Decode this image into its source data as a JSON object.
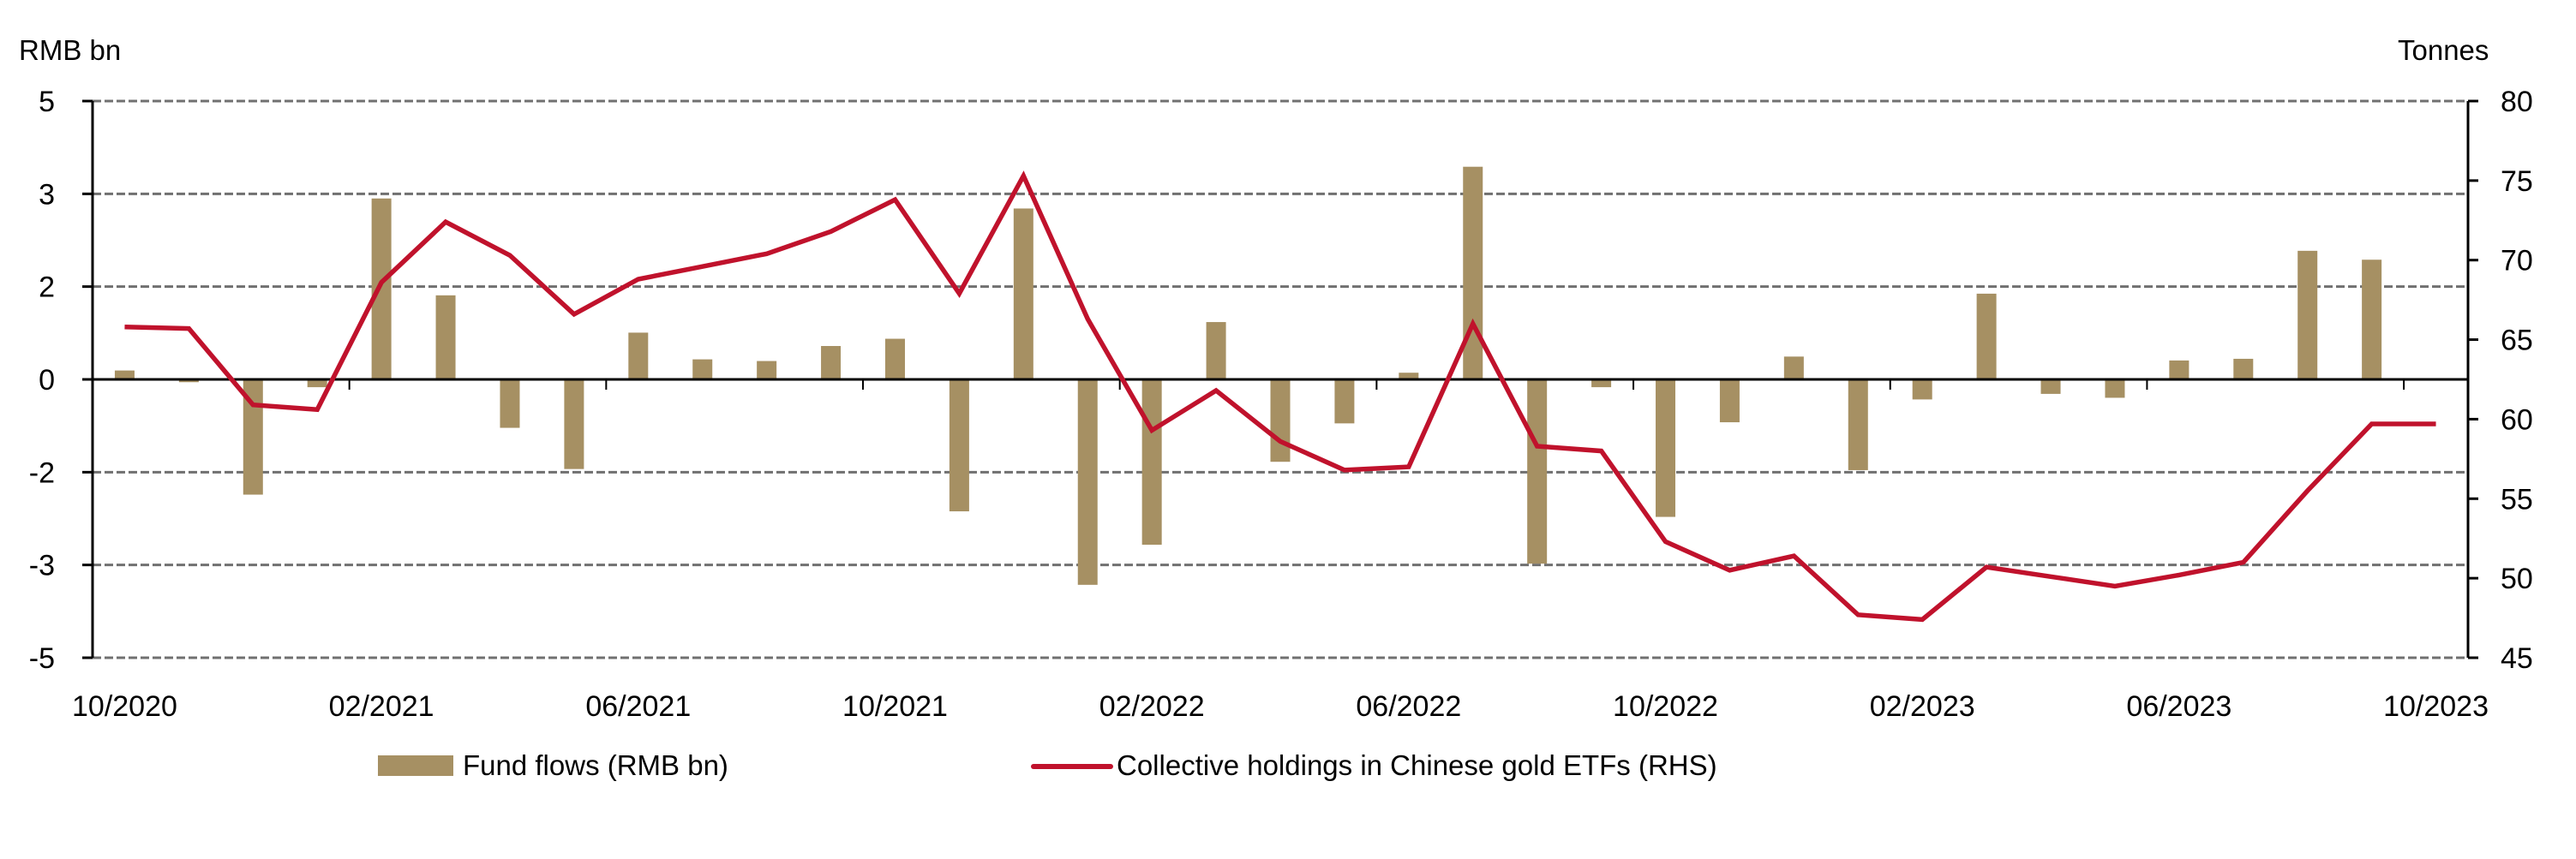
{
  "chart_data": {
    "type": "bar+line",
    "left_axis": {
      "label": "RMB bn",
      "ylim": [
        -5,
        5
      ],
      "tick_labels": [
        "5",
        "3",
        "2",
        "0",
        "-2",
        "-3",
        "-5"
      ],
      "tick_values": [
        5,
        3.333,
        1.667,
        0,
        -1.667,
        -3.333,
        -5
      ]
    },
    "right_axis": {
      "label": "Tonnes",
      "ylim": [
        45,
        80
      ],
      "tick_labels": [
        "80",
        "75",
        "70",
        "65",
        "60",
        "55",
        "50",
        "45"
      ],
      "tick_values": [
        80,
        75,
        70,
        65,
        60,
        55,
        50,
        45
      ]
    },
    "x_tick_labels": [
      "10/2020",
      "02/2021",
      "06/2021",
      "10/2021",
      "02/2022",
      "06/2022",
      "10/2022",
      "02/2023",
      "06/2023",
      "10/2023"
    ],
    "categories": [
      "10/2020",
      "11/2020",
      "12/2020",
      "01/2021",
      "02/2021",
      "03/2021",
      "04/2021",
      "05/2021",
      "06/2021",
      "07/2021",
      "08/2021",
      "09/2021",
      "10/2021",
      "11/2021",
      "12/2021",
      "01/2022",
      "02/2022",
      "03/2022",
      "04/2022",
      "05/2022",
      "06/2022",
      "07/2022",
      "08/2022",
      "09/2022",
      "10/2022",
      "11/2022",
      "12/2022",
      "01/2023",
      "02/2023",
      "03/2023",
      "04/2023",
      "05/2023",
      "06/2023",
      "07/2023",
      "08/2023",
      "09/2023",
      "10/2023"
    ],
    "series": [
      {
        "name": "Fund flows (RMB bn)",
        "type": "bar",
        "axis": "left",
        "color": "#A69063",
        "values": [
          0.16,
          -0.05,
          -2.07,
          -0.14,
          3.25,
          1.51,
          -0.87,
          -1.61,
          0.84,
          0.36,
          0.33,
          0.6,
          0.73,
          -2.37,
          3.07,
          -3.69,
          -2.97,
          1.03,
          -1.48,
          -0.79,
          0.12,
          3.82,
          -3.31,
          -0.14,
          -2.47,
          -0.77,
          0.41,
          -1.63,
          -0.36,
          1.54,
          -0.26,
          -0.33,
          0.34,
          0.37,
          2.31,
          2.15,
          -0.02
        ]
      },
      {
        "name": "Collective holdings in Chinese gold ETFs (RHS)",
        "type": "line",
        "axis": "right",
        "color": "#C0122C",
        "values": [
          65.8,
          65.7,
          60.9,
          60.6,
          68.6,
          72.4,
          70.3,
          66.6,
          68.8,
          69.6,
          70.4,
          71.8,
          73.8,
          67.9,
          75.3,
          66.3,
          59.3,
          61.8,
          58.6,
          56.8,
          57.0,
          66.0,
          58.3,
          58.0,
          52.3,
          50.5,
          51.4,
          47.7,
          47.4,
          50.7,
          50.1,
          49.5,
          50.2,
          51.0,
          55.5,
          59.7,
          59.7
        ]
      }
    ],
    "grid": true,
    "legend_placement": "bottom"
  }
}
